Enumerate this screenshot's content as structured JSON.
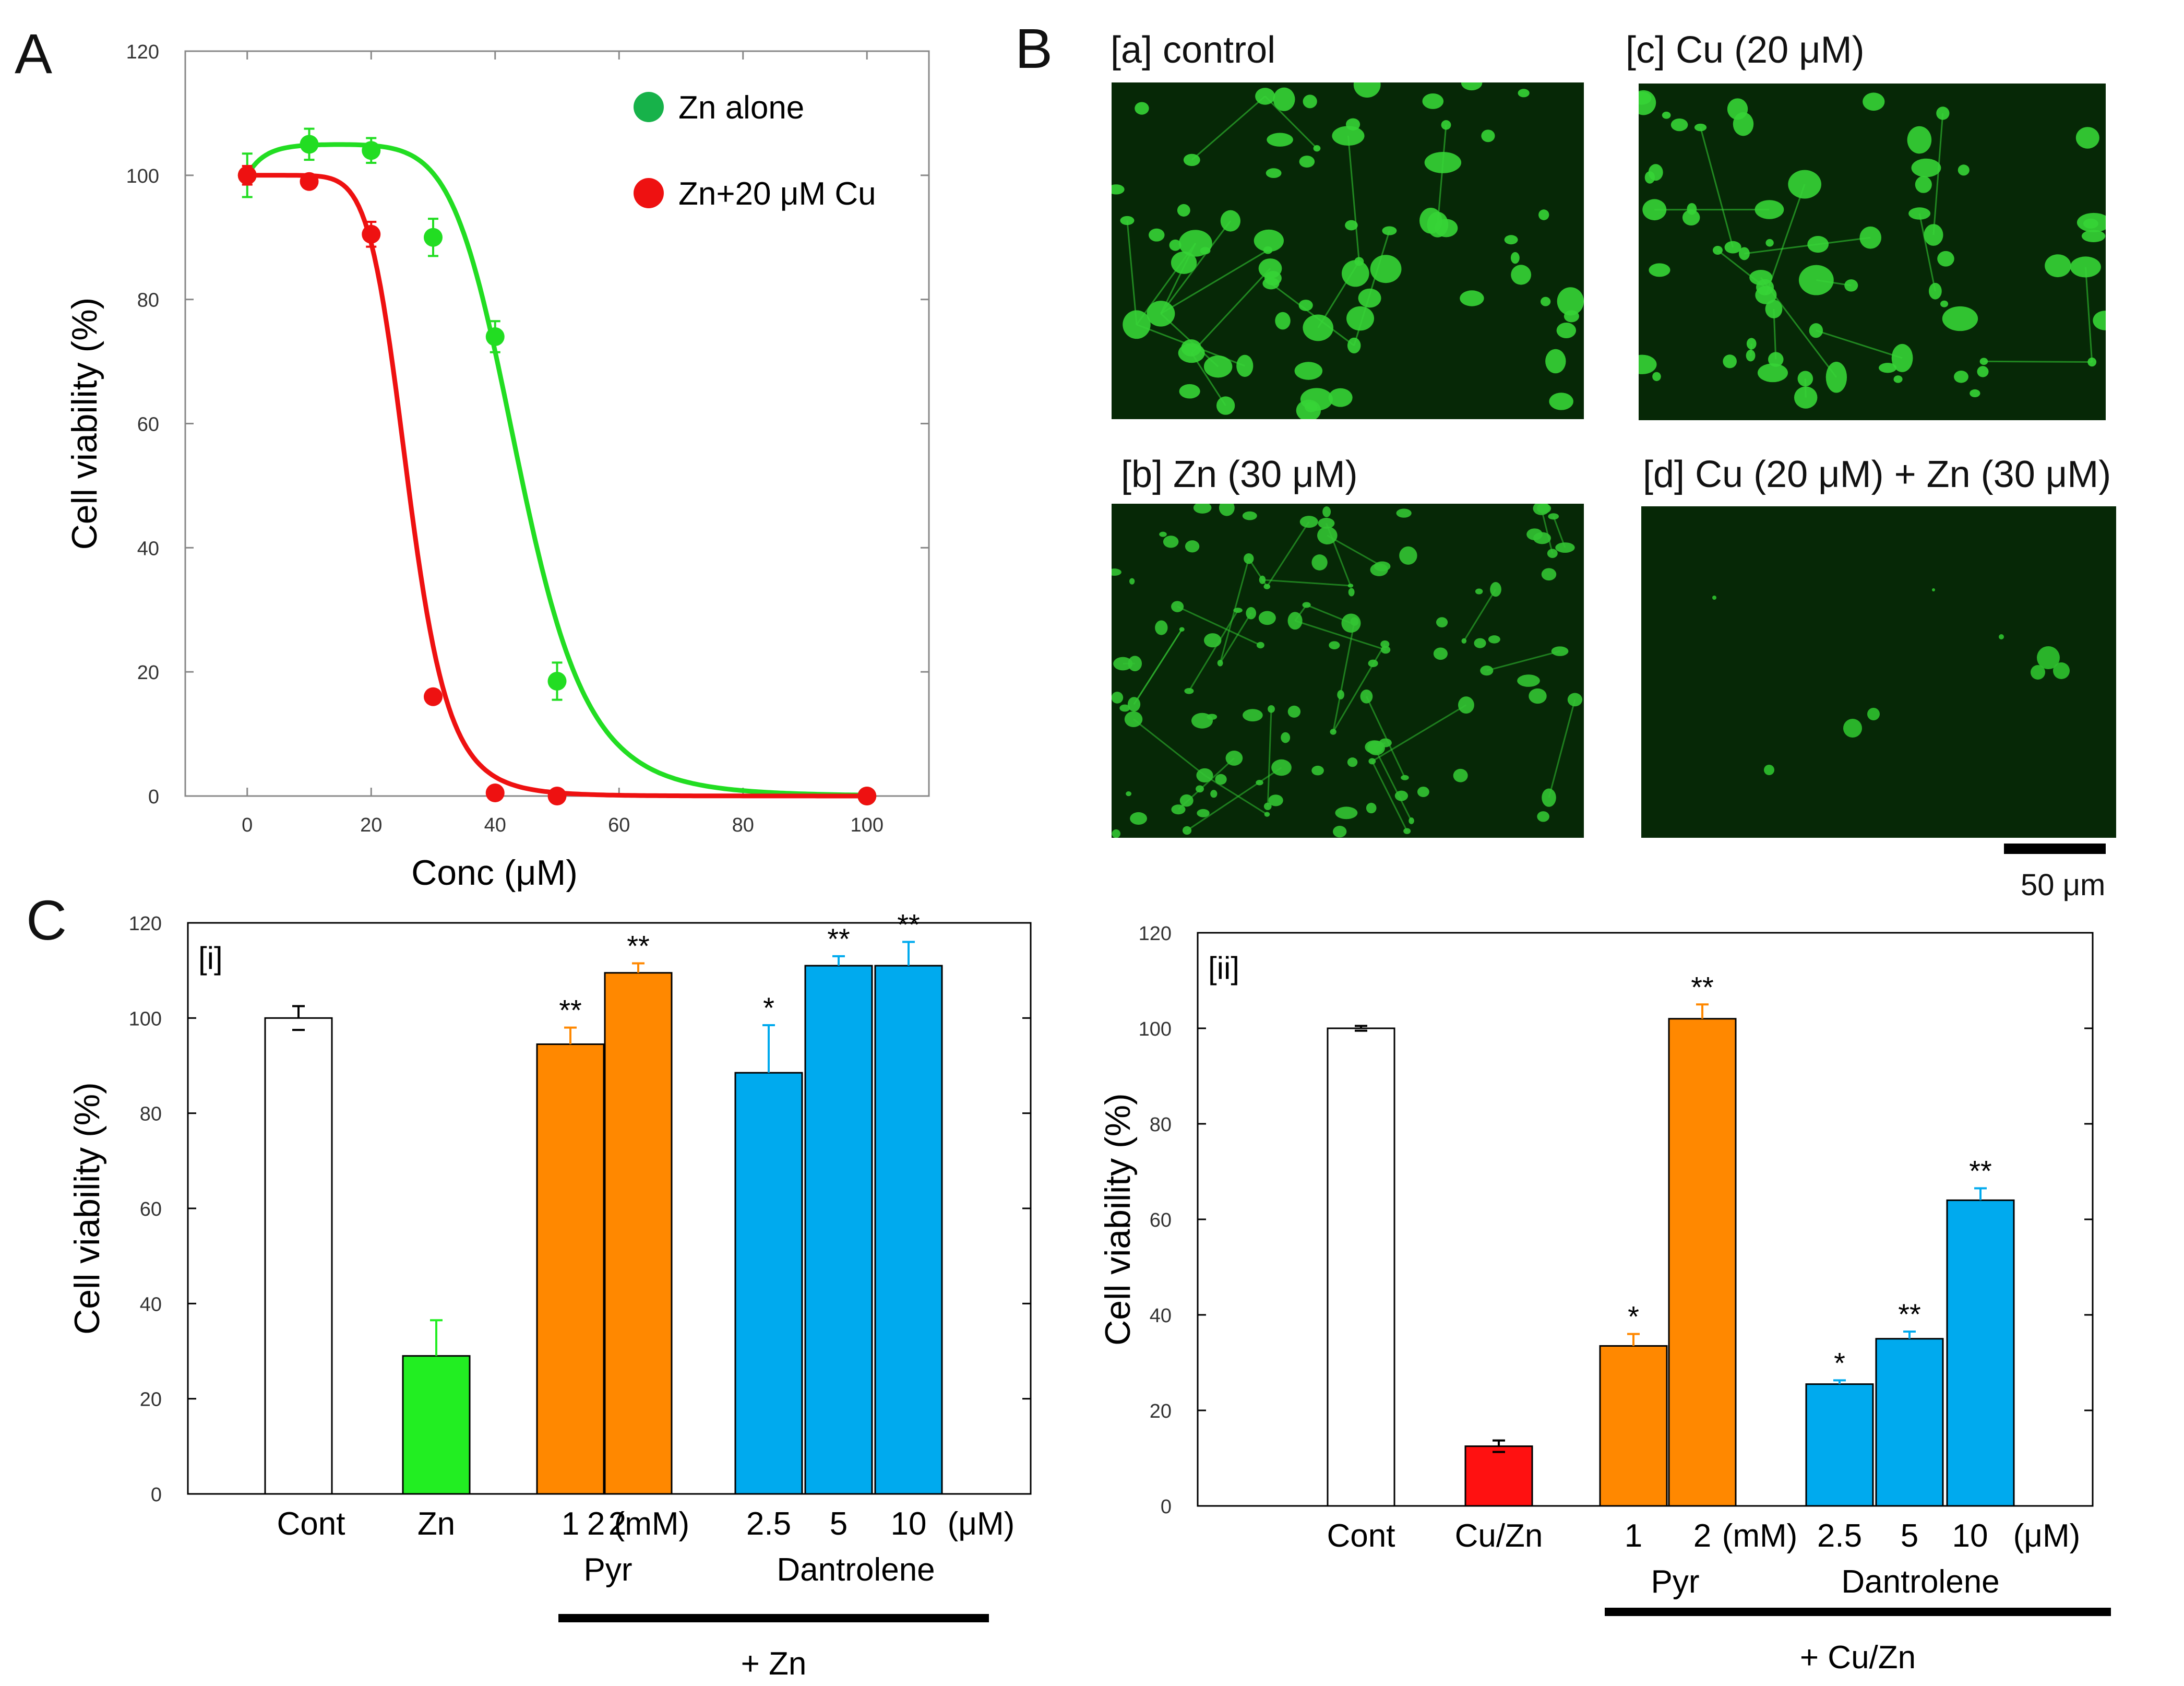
{
  "panels": {
    "A": "A",
    "B": "B",
    "C": "C"
  },
  "chart_data": [
    {
      "id": "A",
      "type": "scatter",
      "xlabel": "Conc (μM)",
      "ylabel": "Cell viability (%)",
      "xlim": [
        -10,
        110
      ],
      "ylim": [
        0,
        120
      ],
      "xticks": [
        0,
        20,
        40,
        60,
        80,
        100
      ],
      "yticks": [
        0,
        20,
        40,
        60,
        80,
        100,
        120
      ],
      "legend_position": "top-right",
      "series": [
        {
          "name": "Zn alone",
          "color": "#22dd22",
          "legend_color": "#17b24a",
          "x": [
            0,
            10,
            20,
            30,
            40,
            50,
            100
          ],
          "y": [
            100,
            105,
            104,
            90,
            74,
            18.5,
            0
          ],
          "err": [
            3.5,
            2.5,
            2.0,
            3.0,
            2.5,
            3.0,
            0
          ],
          "curve": {
            "top": 105,
            "ec50": 44,
            "hill": 8,
            "rise_k": 0.35
          }
        },
        {
          "name": "Zn+20 μM Cu",
          "color": "#ee1111",
          "legend_color": "#ee1111",
          "x": [
            0,
            10,
            20,
            30,
            40,
            50,
            100
          ],
          "y": [
            100,
            99,
            90.5,
            16,
            0.5,
            0,
            0
          ],
          "err": [
            1.5,
            0.8,
            2.0,
            1.0,
            0.5,
            0,
            0
          ],
          "curve": {
            "top": 100,
            "ec50": 26,
            "hill": 8,
            "rise_k": 0
          }
        }
      ]
    },
    {
      "id": "C-i",
      "type": "bar",
      "panel_tag": "[i]",
      "ylabel": "Cell viability (%)",
      "ylim": [
        0,
        120
      ],
      "yticks": [
        0,
        20,
        40,
        60,
        80,
        100,
        120
      ],
      "categories": [
        "Cont",
        "Zn",
        "1",
        "2",
        "2.5",
        "5",
        "10"
      ],
      "values": [
        100,
        29,
        94.5,
        109.5,
        88.5,
        111,
        111
      ],
      "errors": [
        2.5,
        7.5,
        3.5,
        2.0,
        10.0,
        2.0,
        5.0
      ],
      "colors": [
        "#ffffff",
        "#22ee22",
        "#ff8800",
        "#ff8800",
        "#00aaee",
        "#00aaee",
        "#00aaee"
      ],
      "error_colors": [
        "#000000",
        "#22ee22",
        "#ff8800",
        "#ff8800",
        "#00aaee",
        "#00aaee",
        "#00aaee"
      ],
      "significance": [
        "",
        "",
        "**",
        "**",
        "*",
        "**",
        "**"
      ],
      "group_labels": [
        {
          "text": "2 (mM)",
          "row": 1
        },
        {
          "text": "Pyr",
          "row": 2
        },
        {
          "text": "(μM)",
          "row": 1
        },
        {
          "text": "Dantrolene",
          "row": 2
        }
      ],
      "treatment_label": "+ Zn"
    },
    {
      "id": "C-ii",
      "type": "bar",
      "panel_tag": "[ii]",
      "ylabel": "Cell viability (%)",
      "ylim": [
        0,
        120
      ],
      "yticks": [
        0,
        20,
        40,
        60,
        80,
        100,
        120
      ],
      "categories": [
        "Cont",
        "Cu/Zn",
        "1",
        "2",
        "2.5",
        "5",
        "10"
      ],
      "values": [
        100,
        12.5,
        33.5,
        102,
        25.5,
        35,
        64
      ],
      "errors": [
        0.5,
        1.2,
        2.5,
        3.0,
        0.8,
        1.5,
        2.5
      ],
      "colors": [
        "#ffffff",
        "#ff1111",
        "#ff8800",
        "#ff8800",
        "#00aaee",
        "#00aaee",
        "#00aaee"
      ],
      "error_colors": [
        "#000000",
        "#000000",
        "#ff8800",
        "#ff8800",
        "#00aaee",
        "#00aaee",
        "#00aaee"
      ],
      "significance": [
        "",
        "",
        "*",
        "**",
        "*",
        "**",
        "**"
      ],
      "group_labels": [
        {
          "text": "(mM)",
          "row": 1
        },
        {
          "text": "Pyr",
          "row": 2
        },
        {
          "text": "(μM)",
          "row": 1
        },
        {
          "text": "Dantrolene",
          "row": 2
        }
      ],
      "treatment_label": "+ Cu/Zn"
    }
  ],
  "micrographs": [
    {
      "label": "[a] control",
      "brightness": "high"
    },
    {
      "label": "[c] Cu (20 μM)",
      "brightness": "high"
    },
    {
      "label": "[b] Zn (30 μM)",
      "brightness": "medium"
    },
    {
      "label": "[d] Cu (20 μM) + Zn (30 μM)",
      "brightness": "low"
    }
  ],
  "scale_bar": {
    "label": "50 μm"
  }
}
